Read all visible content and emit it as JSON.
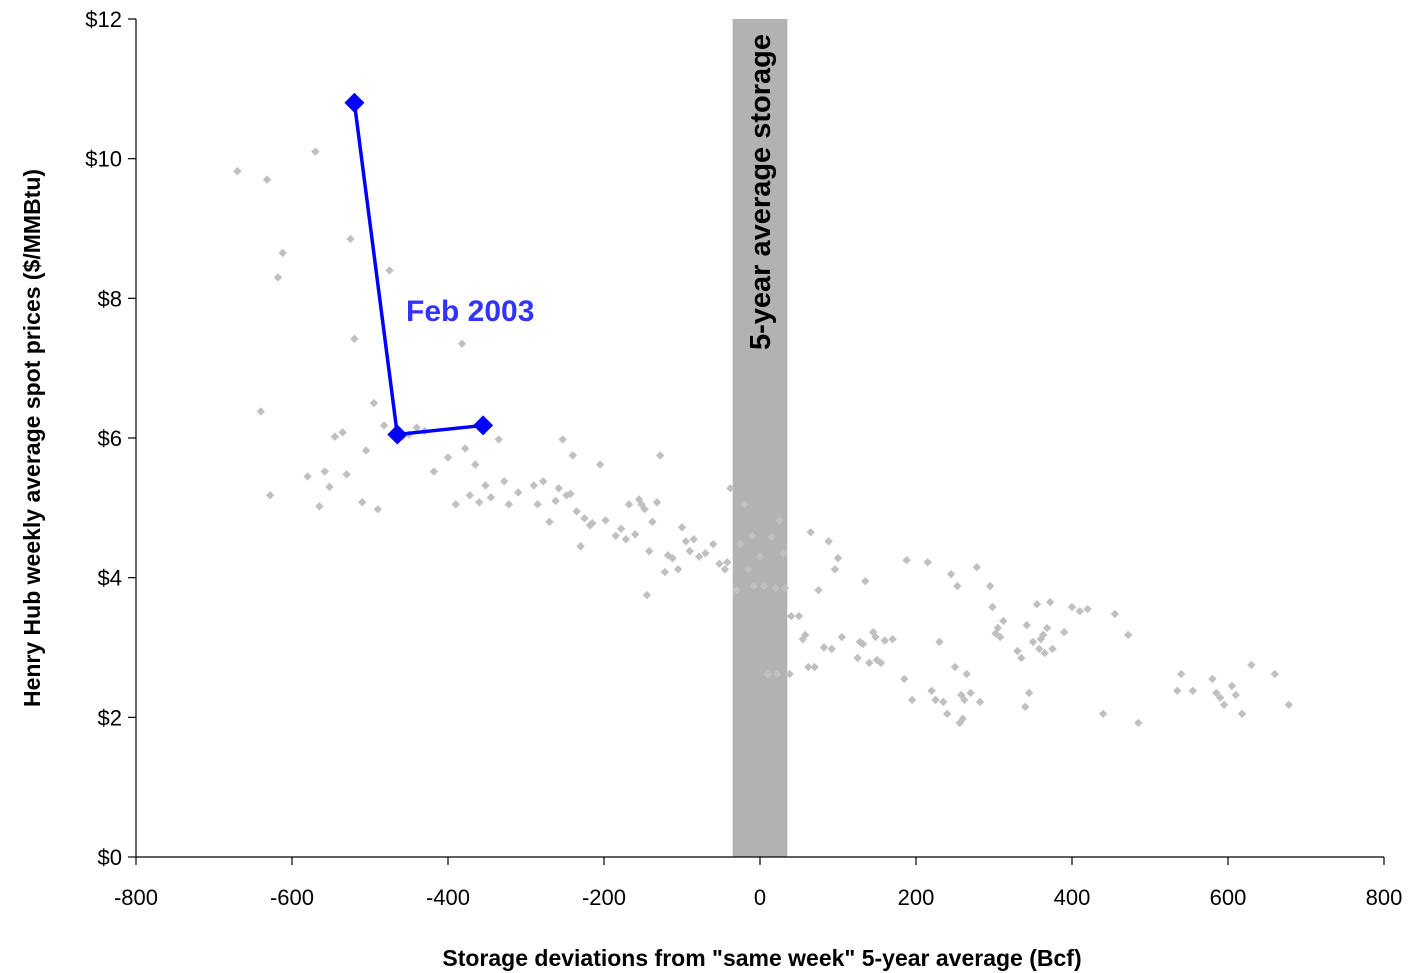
{
  "chart_data": {
    "type": "scatter",
    "title": "",
    "xlabel": "Storage deviations from \"same week\" 5-year average (Bcf)",
    "ylabel": "Henry Hub weekly average spot prices ($/MMBtu)",
    "xlim": [
      -800,
      800
    ],
    "ylim": [
      0,
      12
    ],
    "x_ticks": [
      -800,
      -600,
      -400,
      -200,
      0,
      200,
      400,
      600,
      800
    ],
    "y_ticks": [
      0,
      2,
      4,
      6,
      8,
      10,
      12
    ],
    "x_tick_labels": [
      "-800",
      "-600",
      "-400",
      "-200",
      "0",
      "200",
      "400",
      "600",
      "800"
    ],
    "y_tick_labels": [
      "$0",
      "$2",
      "$4",
      "$6",
      "$8",
      "$10",
      "$12"
    ],
    "grid": false,
    "legend": "none",
    "band": {
      "label": "5-year average storage",
      "x_range": [
        -35,
        35
      ],
      "color": "#b2b2b2"
    },
    "series": [
      {
        "label": "",
        "marker": "diamond",
        "color": "#c0c0c0",
        "points": [
          [
            -670,
            9.82
          ],
          [
            -632,
            9.7
          ],
          [
            -570,
            10.1
          ],
          [
            -640,
            6.38
          ],
          [
            -628,
            5.18
          ],
          [
            -618,
            8.3
          ],
          [
            -612,
            8.65
          ],
          [
            -580,
            5.45
          ],
          [
            -565,
            5.02
          ],
          [
            -558,
            5.52
          ],
          [
            -552,
            5.3
          ],
          [
            -545,
            6.02
          ],
          [
            -535,
            6.08
          ],
          [
            -530,
            5.48
          ],
          [
            -525,
            8.85
          ],
          [
            -520,
            7.42
          ],
          [
            -510,
            5.08
          ],
          [
            -505,
            5.82
          ],
          [
            -495,
            6.5
          ],
          [
            -490,
            4.98
          ],
          [
            -482,
            6.18
          ],
          [
            -475,
            8.4
          ],
          [
            -465,
            6.08
          ],
          [
            -458,
            6.02
          ],
          [
            -450,
            6.05
          ],
          [
            -440,
            6.15
          ],
          [
            -430,
            6.1
          ],
          [
            -418,
            5.52
          ],
          [
            -400,
            5.72
          ],
          [
            -390,
            5.05
          ],
          [
            -382,
            7.35
          ],
          [
            -378,
            5.85
          ],
          [
            -372,
            5.18
          ],
          [
            -365,
            5.62
          ],
          [
            -360,
            5.08
          ],
          [
            -352,
            5.32
          ],
          [
            -345,
            5.15
          ],
          [
            -335,
            5.98
          ],
          [
            -328,
            5.38
          ],
          [
            -322,
            5.05
          ],
          [
            -310,
            5.22
          ],
          [
            -290,
            5.32
          ],
          [
            -285,
            5.05
          ],
          [
            -278,
            5.38
          ],
          [
            -270,
            4.8
          ],
          [
            -262,
            5.1
          ],
          [
            -258,
            5.28
          ],
          [
            -253,
            5.98
          ],
          [
            -248,
            5.18
          ],
          [
            -243,
            5.2
          ],
          [
            -240,
            5.75
          ],
          [
            -235,
            4.95
          ],
          [
            -230,
            4.45
          ],
          [
            -225,
            4.85
          ],
          [
            -218,
            4.75
          ],
          [
            -215,
            4.78
          ],
          [
            -205,
            5.62
          ],
          [
            -198,
            4.82
          ],
          [
            -185,
            4.6
          ],
          [
            -178,
            4.7
          ],
          [
            -172,
            4.55
          ],
          [
            -168,
            5.05
          ],
          [
            -160,
            4.62
          ],
          [
            -155,
            5.12
          ],
          [
            -152,
            5.05
          ],
          [
            -148,
            4.98
          ],
          [
            -145,
            3.75
          ],
          [
            -142,
            4.38
          ],
          [
            -138,
            4.8
          ],
          [
            -132,
            5.08
          ],
          [
            -128,
            5.75
          ],
          [
            -122,
            4.08
          ],
          [
            -118,
            4.32
          ],
          [
            -112,
            4.28
          ],
          [
            -105,
            4.12
          ],
          [
            -100,
            4.72
          ],
          [
            -95,
            4.52
          ],
          [
            -90,
            4.38
          ],
          [
            -85,
            4.55
          ],
          [
            -78,
            4.3
          ],
          [
            -70,
            4.35
          ],
          [
            -60,
            4.48
          ],
          [
            -52,
            4.2
          ],
          [
            -45,
            4.12
          ],
          [
            -42,
            4.22
          ],
          [
            -38,
            5.28
          ],
          [
            -30,
            3.82
          ],
          [
            -25,
            4.48
          ],
          [
            -20,
            5.05
          ],
          [
            -15,
            4.12
          ],
          [
            -10,
            4.6
          ],
          [
            -8,
            3.88
          ],
          [
            0,
            4.3
          ],
          [
            5,
            3.88
          ],
          [
            10,
            2.62
          ],
          [
            15,
            4.58
          ],
          [
            20,
            3.85
          ],
          [
            22,
            2.62
          ],
          [
            25,
            4.82
          ],
          [
            30,
            4.35
          ],
          [
            32,
            3.85
          ],
          [
            38,
            2.62
          ],
          [
            40,
            3.45
          ],
          [
            50,
            3.45
          ],
          [
            55,
            3.12
          ],
          [
            58,
            3.18
          ],
          [
            62,
            2.72
          ],
          [
            65,
            4.65
          ],
          [
            70,
            2.72
          ],
          [
            75,
            3.82
          ],
          [
            82,
            3.0
          ],
          [
            88,
            4.52
          ],
          [
            92,
            2.98
          ],
          [
            96,
            4.12
          ],
          [
            100,
            4.28
          ],
          [
            105,
            3.15
          ],
          [
            125,
            2.85
          ],
          [
            128,
            3.08
          ],
          [
            132,
            3.05
          ],
          [
            135,
            3.95
          ],
          [
            140,
            2.78
          ],
          [
            145,
            3.22
          ],
          [
            148,
            3.15
          ],
          [
            150,
            2.82
          ],
          [
            155,
            2.78
          ],
          [
            160,
            3.1
          ],
          [
            170,
            3.12
          ],
          [
            185,
            2.55
          ],
          [
            188,
            4.25
          ],
          [
            195,
            2.25
          ],
          [
            215,
            4.22
          ],
          [
            220,
            2.38
          ],
          [
            225,
            2.25
          ],
          [
            230,
            3.08
          ],
          [
            235,
            2.22
          ],
          [
            240,
            2.05
          ],
          [
            245,
            4.05
          ],
          [
            250,
            2.72
          ],
          [
            253,
            3.88
          ],
          [
            256,
            1.92
          ],
          [
            258,
            2.32
          ],
          [
            260,
            1.98
          ],
          [
            262,
            2.25
          ],
          [
            265,
            2.62
          ],
          [
            270,
            2.35
          ],
          [
            278,
            4.15
          ],
          [
            282,
            2.22
          ],
          [
            295,
            3.88
          ],
          [
            298,
            3.58
          ],
          [
            302,
            3.2
          ],
          [
            305,
            3.28
          ],
          [
            308,
            3.15
          ],
          [
            312,
            3.38
          ],
          [
            330,
            2.95
          ],
          [
            335,
            2.85
          ],
          [
            340,
            2.15
          ],
          [
            342,
            3.32
          ],
          [
            345,
            2.35
          ],
          [
            350,
            3.08
          ],
          [
            355,
            3.62
          ],
          [
            358,
            2.98
          ],
          [
            360,
            3.12
          ],
          [
            363,
            3.18
          ],
          [
            365,
            2.92
          ],
          [
            368,
            3.28
          ],
          [
            372,
            3.65
          ],
          [
            375,
            2.98
          ],
          [
            390,
            3.22
          ],
          [
            400,
            3.58
          ],
          [
            410,
            3.52
          ],
          [
            420,
            3.55
          ],
          [
            440,
            2.05
          ],
          [
            455,
            3.48
          ],
          [
            472,
            3.18
          ],
          [
            485,
            1.92
          ],
          [
            535,
            2.38
          ],
          [
            540,
            2.62
          ],
          [
            555,
            2.38
          ],
          [
            580,
            2.55
          ],
          [
            585,
            2.35
          ],
          [
            590,
            2.28
          ],
          [
            595,
            2.18
          ],
          [
            605,
            2.45
          ],
          [
            610,
            2.32
          ],
          [
            618,
            2.05
          ],
          [
            630,
            2.75
          ],
          [
            660,
            2.62
          ],
          [
            678,
            2.18
          ]
        ]
      },
      {
        "label": "Feb 2003",
        "marker": "diamond",
        "color": "#0000ff",
        "line": true,
        "points": [
          [
            -520,
            10.8
          ],
          [
            -465,
            6.05
          ],
          [
            -355,
            6.18
          ]
        ]
      }
    ]
  }
}
